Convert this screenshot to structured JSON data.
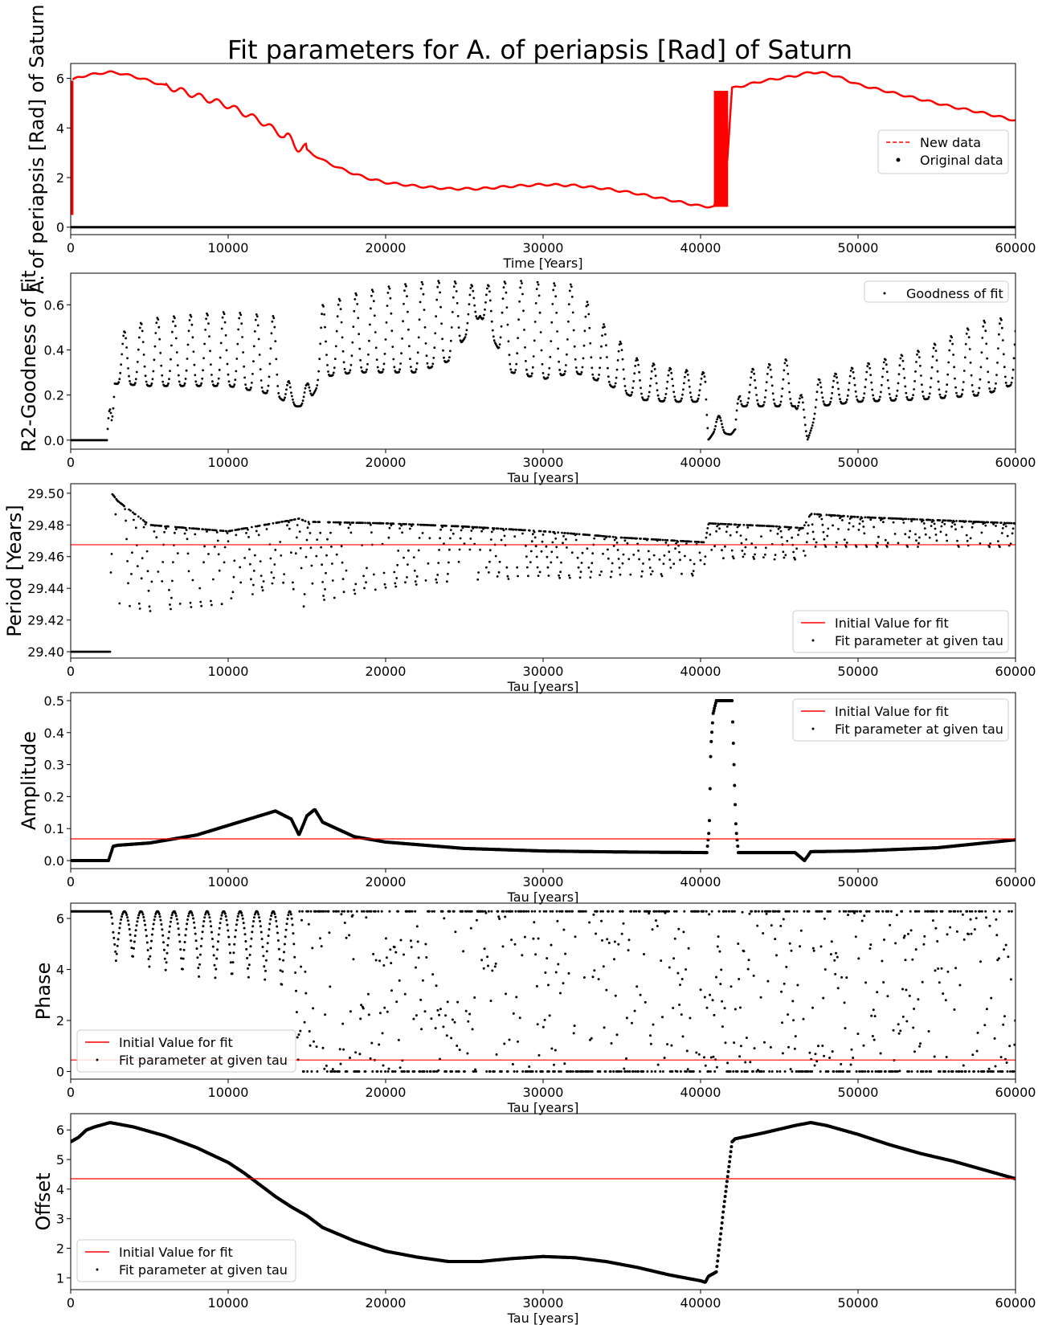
{
  "figure": {
    "title": "Fit parameters for A. of periapsis [Rad] of Saturn"
  },
  "colors": {
    "accent_red": "#ff0000",
    "data_black": "#000000"
  },
  "chart_data": [
    {
      "id": "main",
      "type": "line",
      "xlabel": "Time [Years]",
      "ylabel": "A. of periapsis [Rad] of Saturn",
      "xlim": [
        0,
        60000
      ],
      "ylim": [
        -0.3,
        6.6
      ],
      "xticks": [
        "0",
        "10000",
        "20000",
        "30000",
        "40000",
        "50000",
        "60000"
      ],
      "yticks": [
        "0",
        "2",
        "4",
        "6"
      ],
      "yticks_values": [
        0,
        2,
        4,
        6
      ],
      "legend": {
        "position": "center-right",
        "entries": [
          "New data",
          "Original data"
        ]
      },
      "series": [
        {
          "name": "New data",
          "style": "red-dashed-band",
          "x": [
            0,
            50,
            500,
            1000,
            2000,
            2500,
            3000,
            4000,
            5000,
            6000,
            7000,
            8000,
            9000,
            10000,
            11000,
            12000,
            13000,
            14000,
            15000,
            16000,
            17000,
            18000,
            19000,
            20000,
            22000,
            24000,
            26000,
            28000,
            30000,
            32000,
            34000,
            36000,
            38000,
            40000,
            41000,
            41500,
            42000,
            43000,
            44000,
            45000,
            46000,
            47000,
            48000,
            49000,
            50000,
            52000,
            54000,
            56000,
            58000,
            60000
          ],
          "y": [
            0.5,
            5.9,
            6.05,
            6.12,
            6.22,
            6.25,
            6.22,
            6.08,
            5.9,
            5.7,
            5.5,
            5.3,
            5.1,
            4.9,
            4.6,
            4.3,
            3.9,
            3.45,
            3.1,
            2.7,
            2.4,
            2.15,
            1.95,
            1.8,
            1.65,
            1.55,
            1.55,
            1.65,
            1.72,
            1.68,
            1.55,
            1.35,
            1.1,
            0.85,
            0.82,
            0.82,
            5.6,
            5.75,
            5.9,
            6.0,
            6.1,
            6.25,
            6.2,
            6.0,
            5.75,
            5.45,
            5.15,
            4.85,
            4.6,
            4.3
          ],
          "spikes": [
            {
              "x_start": 0,
              "x_end": 120,
              "y_low": 0.5,
              "y_high": 5.9
            },
            {
              "x_start": 40900,
              "x_end": 41700,
              "y_low": 0.82,
              "y_high": 5.5
            }
          ]
        },
        {
          "name": "Original data",
          "style": "black-dots",
          "x": [
            0,
            60000
          ],
          "y": [
            0,
            0
          ]
        }
      ]
    },
    {
      "id": "r2",
      "type": "scatter",
      "xlabel": "Tau [years]",
      "ylabel": "R2-Goodness of Fit",
      "xlim": [
        0,
        60000
      ],
      "ylim": [
        -0.04,
        0.74
      ],
      "xticks": [
        "0",
        "10000",
        "20000",
        "30000",
        "40000",
        "50000",
        "60000"
      ],
      "yticks": [
        "0.0",
        "0.2",
        "0.4",
        "0.6"
      ],
      "yticks_values": [
        0,
        0.2,
        0.4,
        0.6
      ],
      "legend": {
        "position": "top-right",
        "entries": [
          "Goodness of fit"
        ]
      },
      "series": [
        {
          "name": "Goodness of fit",
          "x": [
            0,
            2300,
            2600,
            2800,
            5000,
            10000,
            13000,
            14000,
            14500,
            15000,
            16000,
            18000,
            20000,
            22000,
            24000,
            26000,
            28000,
            30000,
            32000,
            34000,
            36000,
            38000,
            40300,
            40500,
            41000,
            41500,
            42200,
            42500,
            44000,
            46000,
            46800,
            47500,
            50000,
            54000,
            58000,
            60000
          ],
          "y": [
            0.0,
            0.0,
            0.3,
            0.45,
            0.4,
            0.4,
            0.35,
            0.18,
            0.16,
            0.2,
            0.45,
            0.5,
            0.5,
            0.55,
            0.62,
            0.58,
            0.55,
            0.55,
            0.6,
            0.45,
            0.3,
            0.3,
            0.24,
            0.02,
            0.12,
            0.05,
            0.02,
            0.23,
            0.28,
            0.25,
            0.01,
            0.2,
            0.27,
            0.32,
            0.38,
            0.3
          ],
          "envelope_low": [
            0.0,
            0.0,
            0.0,
            0.25,
            0.24,
            0.24,
            0.2,
            0.15,
            0.15,
            0.15,
            0.28,
            0.3,
            0.3,
            0.3,
            0.35,
            0.55,
            0.3,
            0.27,
            0.3,
            0.25,
            0.18,
            0.17,
            0.17,
            0.0,
            0.05,
            0.03,
            0.02,
            0.15,
            0.15,
            0.15,
            0.0,
            0.15,
            0.17,
            0.18,
            0.2,
            0.25
          ],
          "envelope_high": [
            0.0,
            0.0,
            0.3,
            0.46,
            0.54,
            0.57,
            0.55,
            0.22,
            0.18,
            0.25,
            0.6,
            0.65,
            0.68,
            0.7,
            0.71,
            0.68,
            0.71,
            0.7,
            0.69,
            0.5,
            0.36,
            0.32,
            0.3,
            0.05,
            0.13,
            0.07,
            0.05,
            0.3,
            0.33,
            0.37,
            0.05,
            0.27,
            0.33,
            0.4,
            0.53,
            0.55
          ]
        }
      ]
    },
    {
      "id": "period",
      "type": "scatter",
      "xlabel": "Tau [years]",
      "ylabel": "Period [Years]",
      "xlim": [
        0,
        60000
      ],
      "ylim": [
        29.396,
        29.506
      ],
      "xticks": [
        "0",
        "10000",
        "20000",
        "30000",
        "40000",
        "50000",
        "60000"
      ],
      "yticks": [
        "29.40",
        "29.42",
        "29.44",
        "29.46",
        "29.48",
        "29.50"
      ],
      "yticks_values": [
        29.4,
        29.42,
        29.44,
        29.46,
        29.48,
        29.5
      ],
      "initial_value": 29.4675,
      "legend": {
        "position": "bottom-right",
        "entries": [
          "Initial Value for fit",
          "Fit parameter at given tau"
        ]
      },
      "series": [
        {
          "name": "Fit parameter at given tau",
          "x": [
            0,
            2500,
            2600,
            3000,
            5000,
            10000,
            14000,
            14500,
            15000,
            20000,
            25000,
            30000,
            35000,
            40300,
            40500,
            45000,
            46500,
            47000,
            50000,
            55000,
            60000
          ],
          "envelope_low": [
            29.4,
            29.4,
            29.41,
            29.43,
            29.425,
            29.43,
            29.445,
            29.425,
            29.43,
            29.44,
            29.445,
            29.446,
            29.447,
            29.448,
            29.459,
            29.458,
            29.458,
            29.466,
            29.466,
            29.466,
            29.466
          ],
          "envelope_high": [
            29.4,
            29.4,
            29.5,
            29.495,
            29.48,
            29.476,
            29.483,
            29.484,
            29.482,
            29.481,
            29.479,
            29.476,
            29.472,
            29.469,
            29.481,
            29.479,
            29.478,
            29.487,
            29.485,
            29.483,
            29.481
          ]
        }
      ]
    },
    {
      "id": "amplitude",
      "type": "scatter",
      "xlabel": "Tau [years]",
      "ylabel": "Amplitude",
      "xlim": [
        0,
        60000
      ],
      "ylim": [
        -0.025,
        0.525
      ],
      "xticks": [
        "0",
        "10000",
        "20000",
        "30000",
        "40000",
        "50000",
        "60000"
      ],
      "yticks": [
        "0.0",
        "0.1",
        "0.2",
        "0.3",
        "0.4",
        "0.5"
      ],
      "yticks_values": [
        0,
        0.1,
        0.2,
        0.3,
        0.4,
        0.5
      ],
      "initial_value": 0.068,
      "legend": {
        "position": "top-right",
        "entries": [
          "Initial Value for fit",
          "Fit parameter at given tau"
        ]
      },
      "series": [
        {
          "name": "Fit parameter at given tau",
          "x": [
            0,
            2400,
            2700,
            3000,
            5000,
            8000,
            10000,
            12000,
            13000,
            14000,
            14500,
            15000,
            15500,
            16000,
            18000,
            20000,
            25000,
            30000,
            35000,
            40400,
            40550,
            40650,
            40800,
            41000,
            42000,
            42150,
            42250,
            42400,
            44000,
            46000,
            46600,
            47000,
            50000,
            55000,
            60000
          ],
          "y": [
            0.0,
            0.0,
            0.045,
            0.048,
            0.055,
            0.08,
            0.11,
            0.14,
            0.155,
            0.13,
            0.08,
            0.14,
            0.16,
            0.12,
            0.075,
            0.058,
            0.038,
            0.03,
            0.027,
            0.025,
            0.1,
            0.35,
            0.46,
            0.5,
            0.5,
            0.25,
            0.1,
            0.025,
            0.025,
            0.025,
            0.0,
            0.028,
            0.03,
            0.04,
            0.065
          ]
        }
      ]
    },
    {
      "id": "phase",
      "type": "scatter",
      "xlabel": "Tau [years]",
      "ylabel": "Phase",
      "xlim": [
        0,
        60000
      ],
      "ylim": [
        -0.3,
        6.6
      ],
      "xticks": [
        "0",
        "10000",
        "20000",
        "30000",
        "40000",
        "50000",
        "60000"
      ],
      "yticks": [
        "0",
        "2",
        "4",
        "6"
      ],
      "yticks_values": [
        0,
        2,
        4,
        6
      ],
      "initial_value": 0.45,
      "legend": {
        "position": "bottom-left",
        "entries": [
          "Initial Value for fit",
          "Fit parameter at given tau"
        ]
      },
      "series": [
        {
          "name": "Fit parameter at given tau",
          "upper_band": 6.28,
          "lower_band": 0.0,
          "x": [
            0,
            2500,
            2700,
            3500,
            5000,
            8000,
            10000,
            12000,
            13500,
            14500,
            16000,
            20000,
            25000,
            30000,
            35000,
            40500,
            42000,
            46000,
            47000,
            50000,
            55000,
            60000
          ],
          "envelope_low": [
            6.28,
            6.28,
            4.2,
            4.4,
            4.0,
            3.6,
            3.5,
            3.6,
            3.0,
            0.0,
            0.0,
            0.0,
            0.0,
            0.0,
            0.0,
            0.0,
            0.0,
            0.0,
            0.0,
            0.0,
            0.0,
            0.0
          ],
          "envelope_high": [
            6.28,
            6.28,
            6.28,
            6.28,
            6.28,
            6.28,
            6.28,
            6.28,
            6.28,
            6.28,
            6.28,
            6.28,
            6.28,
            6.28,
            6.28,
            6.28,
            6.28,
            6.28,
            6.28,
            6.28,
            6.28,
            6.28
          ]
        }
      ]
    },
    {
      "id": "offset",
      "type": "scatter",
      "xlabel": "Tau [years]",
      "ylabel": "Offset",
      "xlim": [
        0,
        60000
      ],
      "ylim": [
        0.6,
        6.55
      ],
      "xticks": [
        "0",
        "10000",
        "20000",
        "30000",
        "40000",
        "50000",
        "60000"
      ],
      "yticks": [
        "1",
        "2",
        "3",
        "4",
        "5",
        "6"
      ],
      "yticks_values": [
        1,
        2,
        3,
        4,
        5,
        6
      ],
      "initial_value": 4.35,
      "legend": {
        "position": "bottom-left",
        "entries": [
          "Initial Value for fit",
          "Fit parameter at given tau"
        ]
      },
      "series": [
        {
          "name": "Fit parameter at given tau",
          "x": [
            0,
            500,
            1000,
            1500,
            2500,
            4000,
            6000,
            8000,
            10000,
            11000,
            12000,
            13000,
            14000,
            15000,
            16000,
            18000,
            20000,
            22000,
            24000,
            26000,
            28000,
            30000,
            32000,
            34000,
            36000,
            38000,
            40000,
            40300,
            40500,
            41000,
            41500,
            42000,
            42200,
            44000,
            46000,
            47000,
            48000,
            50000,
            52000,
            54000,
            56000,
            58000,
            60000
          ],
          "y": [
            5.6,
            5.75,
            6.0,
            6.1,
            6.25,
            6.1,
            5.8,
            5.4,
            4.9,
            4.55,
            4.15,
            3.75,
            3.4,
            3.1,
            2.7,
            2.25,
            1.9,
            1.7,
            1.55,
            1.55,
            1.65,
            1.72,
            1.68,
            1.55,
            1.35,
            1.1,
            0.9,
            0.85,
            1.05,
            1.2,
            3.5,
            5.6,
            5.7,
            5.9,
            6.15,
            6.25,
            6.15,
            5.85,
            5.5,
            5.2,
            4.95,
            4.65,
            4.35
          ]
        }
      ]
    }
  ]
}
